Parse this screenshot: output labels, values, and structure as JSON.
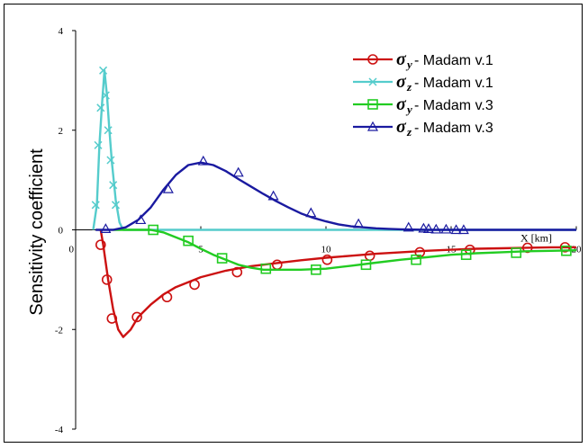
{
  "chart_data": {
    "type": "line",
    "xlabel": "X [km]",
    "ylabel": "Sensitivity coefficient",
    "xlim": [
      0,
      20
    ],
    "ylim": [
      -4,
      4
    ],
    "x_ticks": [
      "0",
      "5",
      "10",
      "15",
      "20"
    ],
    "y_ticks": [
      "4",
      "2",
      "0",
      "-2",
      "-4"
    ],
    "grid": false,
    "legend_position": "top-right",
    "series": [
      {
        "name_symbol": "σ",
        "name_sub": "y",
        "name_text": " - Madam v.1",
        "color": "#cc1111",
        "marker": "circle",
        "x": [
          1.0,
          1.1,
          1.3,
          1.5,
          1.7,
          1.9,
          2.2,
          2.5,
          3.0,
          3.5,
          4.0,
          5.0,
          6.0,
          7.0,
          8.0,
          9.0,
          10.0,
          11.0,
          12.0,
          13.0,
          14.0,
          15.0,
          16.0,
          17.0,
          18.0,
          19.0,
          20.0
        ],
        "y": [
          0,
          -0.3,
          -1.0,
          -1.6,
          -2.0,
          -2.15,
          -2.0,
          -1.75,
          -1.5,
          -1.3,
          -1.15,
          -0.95,
          -0.82,
          -0.73,
          -0.67,
          -0.61,
          -0.56,
          -0.52,
          -0.48,
          -0.45,
          -0.42,
          -0.4,
          -0.38,
          -0.37,
          -0.36,
          -0.35,
          -0.35
        ],
        "markers_x": [
          1.0,
          1.25,
          1.45,
          2.45,
          3.65,
          4.75,
          6.45,
          8.05,
          10.05,
          11.75,
          13.75,
          15.75,
          18.05,
          19.55
        ],
        "markers_y": [
          -0.3,
          -1.0,
          -1.78,
          -1.75,
          -1.35,
          -1.1,
          -0.85,
          -0.7,
          -0.6,
          -0.52,
          -0.45,
          -0.4,
          -0.36,
          -0.35
        ]
      },
      {
        "name_symbol": "σ",
        "name_sub": "z",
        "name_text": " - Madam v.1",
        "color": "#55cccc",
        "marker": "x",
        "x": [
          0.7,
          0.85,
          0.95,
          1.05,
          1.15,
          1.25,
          1.35,
          1.45,
          1.6,
          1.75,
          1.9,
          2.2,
          20.0
        ],
        "y": [
          0,
          0.5,
          1.7,
          2.5,
          3.2,
          2.7,
          2.0,
          1.35,
          0.6,
          0.15,
          0,
          0,
          0
        ],
        "markers_x": [
          0.8,
          0.9,
          1.0,
          1.1,
          1.2,
          1.3,
          1.4,
          1.5,
          1.6
        ],
        "markers_y": [
          0.5,
          1.7,
          2.45,
          3.2,
          2.7,
          2.0,
          1.4,
          0.9,
          0.5
        ]
      },
      {
        "name_symbol": "σ",
        "name_sub": "y",
        "name_text": " - Madam v.3",
        "color": "#22cc22",
        "marker": "square",
        "x": [
          1.5,
          2.5,
          3.0,
          3.5,
          4.0,
          4.5,
          5.0,
          5.5,
          6.0,
          6.5,
          7.0,
          7.5,
          8.0,
          9.0,
          10.0,
          11.0,
          12.0,
          13.0,
          14.0,
          15.0,
          16.0,
          17.0,
          18.0,
          19.0,
          20.0
        ],
        "y": [
          0,
          0,
          0,
          -0.05,
          -0.15,
          -0.25,
          -0.38,
          -0.5,
          -0.6,
          -0.7,
          -0.76,
          -0.8,
          -0.8,
          -0.8,
          -0.78,
          -0.72,
          -0.66,
          -0.6,
          -0.55,
          -0.5,
          -0.47,
          -0.45,
          -0.43,
          -0.42,
          -0.41
        ],
        "markers_x": [
          3.1,
          4.5,
          5.85,
          7.6,
          9.6,
          11.6,
          13.6,
          15.6,
          17.6,
          19.6
        ],
        "markers_y": [
          0,
          -0.22,
          -0.57,
          -0.78,
          -0.8,
          -0.7,
          -0.6,
          -0.5,
          -0.46,
          -0.42
        ]
      },
      {
        "name_symbol": "σ",
        "name_sub": "z",
        "name_text": " - Madam v.3",
        "color": "#1a1aa0",
        "marker": "triangle",
        "x": [
          0.8,
          1.5,
          2.0,
          2.5,
          3.0,
          3.5,
          4.0,
          4.5,
          5.0,
          5.5,
          6.0,
          6.5,
          7.0,
          7.5,
          8.0,
          8.5,
          9.0,
          9.5,
          10.0,
          10.5,
          11.0,
          11.5,
          12.0,
          12.5,
          13.0,
          14.0,
          15.0,
          16.0,
          20.0
        ],
        "y": [
          0,
          0,
          0.05,
          0.2,
          0.45,
          0.8,
          1.1,
          1.3,
          1.35,
          1.3,
          1.18,
          1.02,
          0.87,
          0.72,
          0.58,
          0.45,
          0.33,
          0.24,
          0.17,
          0.11,
          0.07,
          0.05,
          0.03,
          0.02,
          0.01,
          0,
          0,
          0,
          0
        ],
        "markers_x": [
          1.2,
          2.6,
          3.7,
          5.1,
          6.5,
          7.9,
          9.4,
          11.3,
          13.3,
          13.9,
          14.1,
          14.4,
          14.8,
          15.2,
          15.5
        ],
        "markers_y": [
          0.02,
          0.2,
          0.82,
          1.38,
          1.15,
          0.68,
          0.34,
          0.12,
          0.05,
          0.03,
          0.02,
          0.01,
          0.01,
          0,
          0
        ]
      }
    ]
  }
}
